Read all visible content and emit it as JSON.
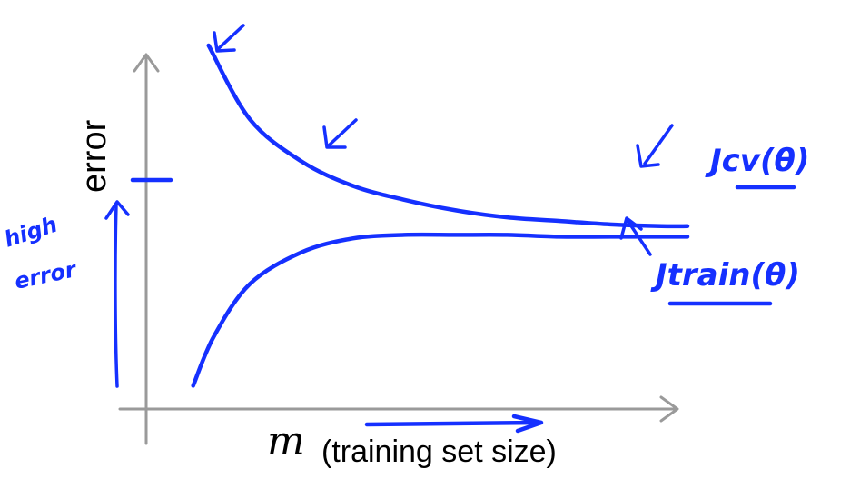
{
  "chart_data": {
    "type": "line",
    "ylabel": "error",
    "xlabel_symbol": "m",
    "xlabel": "(training set size)",
    "xlim": [
      0,
      1
    ],
    "ylim": [
      0,
      1
    ],
    "series": [
      {
        "name": "Jcv(θ)",
        "x": [
          0.07,
          0.15,
          0.25,
          0.35,
          0.45,
          0.55,
          0.65,
          0.75,
          0.85,
          0.95,
          1.0
        ],
        "y": [
          1.0,
          0.79,
          0.67,
          0.6,
          0.56,
          0.53,
          0.51,
          0.5,
          0.49,
          0.485,
          0.485
        ]
      },
      {
        "name": "Jtrain(θ)",
        "x": [
          0.04,
          0.08,
          0.15,
          0.25,
          0.35,
          0.45,
          0.55,
          0.65,
          0.75,
          0.85,
          0.95,
          1.0
        ],
        "y": [
          0.03,
          0.17,
          0.32,
          0.41,
          0.45,
          0.46,
          0.46,
          0.46,
          0.455,
          0.455,
          0.455,
          0.455
        ]
      }
    ],
    "annotations": {
      "y_tick": "high error marker",
      "high_error_note": [
        "high",
        "error"
      ],
      "jcv_label": "Jcv(θ)",
      "jtrain_label": "Jtrain(θ)"
    }
  },
  "colors": {
    "ink": "#1530ff",
    "axis": "#9a9a9a",
    "text": "#000000"
  }
}
